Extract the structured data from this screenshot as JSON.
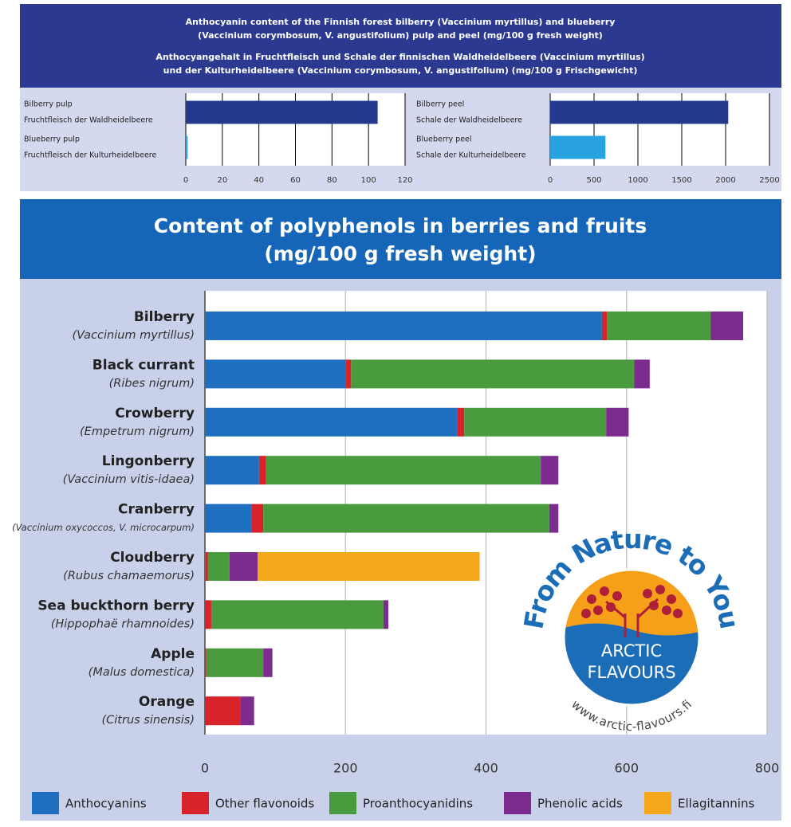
{
  "header": {
    "lines": [
      "Anthocyanin content of the Finnish forest bilberry (Vaccinium myrtillus) and blueberry",
      "(Vaccinium corymbosum, V. angustifolium) pulp and peel (mg/100 g fresh weight)",
      "Anthocyangehalt in Fruchtfleisch und Schale der finnischen Waldheidelbeere (Vaccinium myrtillus)",
      "und der Kulturheidelbeere (Vaccinium corymbosum, V. angustifolium) (mg/100 g Frischgewicht)"
    ]
  },
  "logo": {
    "arc_top": "From Nature to You",
    "line1": "ARCTIC",
    "line2": "FLAVOURS",
    "url": "www.arctic-flavours.fi"
  },
  "chart_data": [
    {
      "type": "bar",
      "orientation": "horizontal",
      "categories": [
        "Bilberry pulp",
        "Blueberry pulp"
      ],
      "categories_de": [
        "Fruchtfleisch der Waldheidelbeere",
        "Fruchtfleisch der Kulturheidelbeere"
      ],
      "values": [
        105,
        1
      ],
      "colors": [
        "#233a8f",
        "#29a3e0"
      ],
      "xlim": [
        0,
        120
      ],
      "xticks": [
        0,
        20,
        40,
        60,
        80,
        100,
        120
      ],
      "grid": true
    },
    {
      "type": "bar",
      "orientation": "horizontal",
      "categories": [
        "Bilberry peel",
        "Blueberry peel"
      ],
      "categories_de": [
        "Schale der Waldheidelbeere",
        "Schale der Kulturheidelbeere"
      ],
      "values": [
        2030,
        630
      ],
      "colors": [
        "#233a8f",
        "#29a3e0"
      ],
      "xlim": [
        0,
        2500
      ],
      "xticks": [
        0,
        500,
        1000,
        1500,
        2000,
        2500
      ],
      "grid": true
    },
    {
      "type": "stacked_bar",
      "orientation": "horizontal",
      "title": "Content of polyphenols in berries and fruits",
      "subtitle": "(mg/100 g fresh weight)",
      "categories": [
        "Bilberry",
        "Black currant",
        "Crowberry",
        "Lingonberry",
        "Cranberry",
        "Cloudberry",
        "Sea buckthorn berry",
        "Apple",
        "Orange"
      ],
      "latin_names": [
        "(Vaccinium myrtillus)",
        "(Ribes nigrum)",
        "(Empetrum nigrum)",
        "(Vaccinium vitis-idaea)",
        "(Vaccinium oxycoccos, V. microcarpum)",
        "(Rubus chamaemorus)",
        "(Hippophaë rhamnoides)",
        "(Malus domestica)",
        "(Citrus sinensis)"
      ],
      "series": [
        {
          "name": "Anthocyanins",
          "color": "#1e6fc0",
          "values": [
            565,
            200,
            359,
            77,
            66,
            1,
            0,
            0,
            0
          ]
        },
        {
          "name": "Other flavonoids",
          "color": "#d9232b",
          "values": [
            7,
            8,
            10,
            10,
            17,
            3,
            9,
            2,
            51
          ]
        },
        {
          "name": "Proanthocyanidins",
          "color": "#4a9a3e",
          "values": [
            148,
            403,
            202,
            391,
            407,
            31,
            245,
            81,
            0
          ]
        },
        {
          "name": "Phenolic acids",
          "color": "#7b2c8e",
          "values": [
            46,
            22,
            32,
            25,
            13,
            40,
            7,
            13,
            19
          ]
        },
        {
          "name": "Ellagitannins",
          "color": "#f5a81c",
          "values": [
            0,
            0,
            0,
            0,
            0,
            316,
            0,
            0,
            0
          ]
        }
      ],
      "xlim": [
        0,
        800
      ],
      "xticks": [
        0,
        200,
        400,
        600,
        800
      ],
      "grid": true,
      "legend": "bottom"
    }
  ]
}
